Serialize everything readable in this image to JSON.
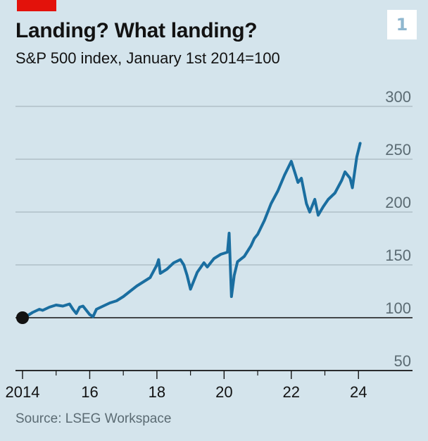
{
  "header": {
    "title": "Landing? What landing?",
    "subtitle": "S&P 500 index, January 1st 2014=100",
    "chart_number": "1"
  },
  "footer": {
    "source": "Source: LSEG Workspace"
  },
  "colors": {
    "line": "#1a6ea0",
    "accent": "#e3120b",
    "background": "#d4e4ec",
    "grid": "#a9b7bf",
    "baseline": "#121212"
  },
  "chart_data": {
    "type": "line",
    "title": "Landing? What landing?",
    "subtitle": "S&P 500 index, January 1st 2014=100",
    "xlabel": "",
    "ylabel": "",
    "xlim": [
      2014.0,
      2024.1
    ],
    "ylim": [
      50,
      300
    ],
    "y_ticks": [
      50,
      100,
      150,
      200,
      250,
      300
    ],
    "y_tick_labels": [
      "50",
      "100",
      "150",
      "200",
      "250",
      "300"
    ],
    "x_ticks": [
      2014,
      2016,
      2018,
      2020,
      2022,
      2024
    ],
    "x_tick_labels": [
      "2014",
      "16",
      "18",
      "20",
      "22",
      "24"
    ],
    "x_minor_ticks": [
      2015,
      2017,
      2019,
      2021,
      2023
    ],
    "grid": true,
    "series": [
      {
        "name": "",
        "x": [
          2014.0,
          2014.1,
          2014.3,
          2014.5,
          2014.6,
          2014.8,
          2015.0,
          2015.2,
          2015.4,
          2015.5,
          2015.6,
          2015.7,
          2015.8,
          2016.0,
          2016.1,
          2016.2,
          2016.4,
          2016.6,
          2016.8,
          2017.0,
          2017.2,
          2017.4,
          2017.6,
          2017.8,
          2018.0,
          2018.05,
          2018.1,
          2018.3,
          2018.5,
          2018.7,
          2018.8,
          2018.9,
          2019.0,
          2019.2,
          2019.4,
          2019.5,
          2019.7,
          2019.9,
          2020.1,
          2020.15,
          2020.22,
          2020.3,
          2020.4,
          2020.6,
          2020.8,
          2020.9,
          2021.0,
          2021.2,
          2021.4,
          2021.6,
          2021.8,
          2022.0,
          2022.1,
          2022.2,
          2022.3,
          2022.45,
          2022.55,
          2022.7,
          2022.8,
          2022.95,
          2023.1,
          2023.3,
          2023.5,
          2023.6,
          2023.75,
          2023.82,
          2023.95,
          2024.05
        ],
        "y": [
          100,
          101,
          105,
          108,
          107,
          110,
          112,
          111,
          113,
          108,
          104,
          110,
          111,
          103,
          101,
          108,
          111,
          114,
          116,
          120,
          125,
          130,
          134,
          138,
          150,
          155,
          142,
          146,
          152,
          155,
          150,
          140,
          127,
          143,
          152,
          148,
          156,
          160,
          162,
          180,
          120,
          140,
          153,
          158,
          168,
          175,
          179,
          192,
          208,
          220,
          235,
          248,
          238,
          228,
          232,
          208,
          200,
          212,
          197,
          205,
          212,
          218,
          230,
          238,
          232,
          223,
          252,
          265
        ]
      }
    ],
    "annotations": [
      {
        "type": "marker",
        "x": 2014.0,
        "y": 100
      }
    ]
  }
}
